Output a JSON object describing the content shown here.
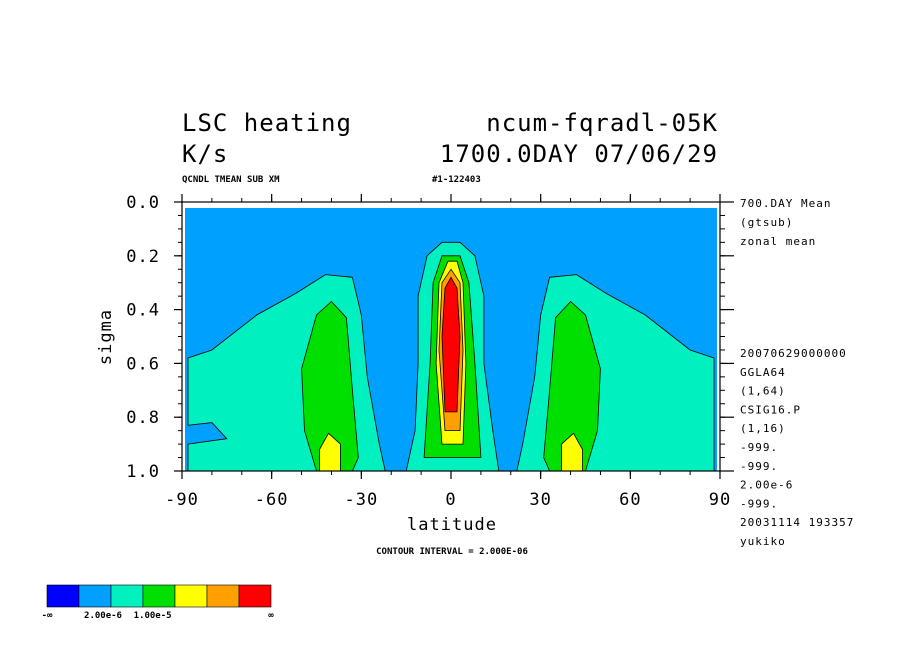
{
  "header": {
    "title_left": "LSC heating",
    "title_right": "ncum-fqradl-05K",
    "units": "K/s",
    "time": "1700.0DAY 07/06/29",
    "sub_left": "QCNDL TMEAN SUB XM",
    "sub_right": "#1-122403"
  },
  "side_info_top": [
    "700.DAY Mean",
    "(gtsub)",
    "zonal mean"
  ],
  "side_info_bottom": [
    "20070629000000",
    "GGLA64",
    "(1,64)",
    "CSIG16.P",
    "(1,16)",
    "-999.",
    "-999.",
    "2.00e-6",
    "-999.",
    "20031114 193357",
    "yukiko"
  ],
  "footer": {
    "contour_interval": "CONTOUR INTERVAL = 2.000E-06"
  },
  "legend": {
    "colors": [
      "#0000ff",
      "#00a0ff",
      "#00f0c0",
      "#00e000",
      "#ffff00",
      "#ffa000",
      "#ff0000"
    ],
    "labels": [
      "-∞",
      "2.00e-6",
      "1.00e-5",
      "∞"
    ]
  },
  "chart_data": {
    "type": "contour",
    "variable": "LSC heating",
    "units": "K/s",
    "xlabel": "latitude",
    "ylabel": "sigma",
    "xlim": [
      -90,
      90
    ],
    "ylim": [
      1.0,
      0.0
    ],
    "x_ticks": [
      "-90",
      "-60",
      "-30",
      "0",
      "30",
      "60",
      "90"
    ],
    "y_ticks": [
      "0.0",
      "0.2",
      "0.4",
      "0.6",
      "0.8",
      "1.0"
    ],
    "contour_interval": 2e-06,
    "shading_levels": [
      2e-06,
      1e-05
    ],
    "regions": [
      {
        "level": 1,
        "color": "#00f0c0",
        "outline": [
          [
            -88,
            0.58
          ],
          [
            -80,
            0.55
          ],
          [
            -65,
            0.42
          ],
          [
            -52,
            0.34
          ],
          [
            -42,
            0.27
          ],
          [
            -33,
            0.28
          ],
          [
            -30,
            0.42
          ],
          [
            -28,
            0.65
          ],
          [
            -24,
            0.9
          ],
          [
            -22,
            1.0
          ],
          [
            -88,
            1.0
          ],
          [
            -88,
            0.9
          ],
          [
            -75,
            0.88
          ],
          [
            -80,
            0.82
          ],
          [
            -88,
            0.83
          ]
        ]
      },
      {
        "level": 1,
        "color": "#00f0c0",
        "outline": [
          [
            88,
            0.58
          ],
          [
            80,
            0.55
          ],
          [
            65,
            0.42
          ],
          [
            52,
            0.34
          ],
          [
            42,
            0.27
          ],
          [
            33,
            0.28
          ],
          [
            30,
            0.42
          ],
          [
            28,
            0.65
          ],
          [
            24,
            0.9
          ],
          [
            22,
            1.0
          ],
          [
            88,
            1.0
          ],
          [
            88,
            0.9
          ]
        ]
      },
      {
        "level": 2,
        "color": "#00e000",
        "outline": [
          [
            -50,
            0.62
          ],
          [
            -45,
            0.42
          ],
          [
            -40,
            0.37
          ],
          [
            -35,
            0.43
          ],
          [
            -33,
            0.7
          ],
          [
            -31,
            0.95
          ],
          [
            -33,
            1.0
          ],
          [
            -45,
            1.0
          ],
          [
            -49,
            0.85
          ]
        ]
      },
      {
        "level": 2,
        "color": "#00e000",
        "outline": [
          [
            50,
            0.62
          ],
          [
            45,
            0.42
          ],
          [
            40,
            0.37
          ],
          [
            35,
            0.43
          ],
          [
            33,
            0.7
          ],
          [
            31,
            0.95
          ],
          [
            33,
            1.0
          ],
          [
            45,
            1.0
          ],
          [
            49,
            0.85
          ]
        ]
      },
      {
        "level": 3,
        "color": "#ffff00",
        "outline": [
          [
            -44,
            0.92
          ],
          [
            -41,
            0.86
          ],
          [
            -37,
            0.9
          ],
          [
            -37,
            1.0
          ],
          [
            -44,
            1.0
          ]
        ]
      },
      {
        "level": 3,
        "color": "#ffff00",
        "outline": [
          [
            44,
            0.92
          ],
          [
            41,
            0.86
          ],
          [
            37,
            0.9
          ],
          [
            37,
            1.0
          ],
          [
            44,
            1.0
          ]
        ]
      },
      {
        "level": 1,
        "color": "#00f0c0",
        "outline": [
          [
            -11,
            0.35
          ],
          [
            -8,
            0.2
          ],
          [
            -3,
            0.15
          ],
          [
            3,
            0.15
          ],
          [
            8,
            0.2
          ],
          [
            11,
            0.35
          ],
          [
            11,
            0.6
          ],
          [
            14,
            0.85
          ],
          [
            16,
            1.0
          ],
          [
            -15,
            1.0
          ],
          [
            -12,
            0.85
          ],
          [
            -11,
            0.6
          ]
        ]
      },
      {
        "level": 2,
        "color": "#00e000",
        "outline": [
          [
            -6,
            0.3
          ],
          [
            -3,
            0.2
          ],
          [
            3,
            0.2
          ],
          [
            6,
            0.3
          ],
          [
            8,
            0.6
          ],
          [
            10,
            0.95
          ],
          [
            -9,
            0.95
          ],
          [
            -7,
            0.6
          ]
        ]
      },
      {
        "level": 3,
        "color": "#ffff00",
        "outline": [
          [
            -4,
            0.3
          ],
          [
            -1,
            0.22
          ],
          [
            2,
            0.22
          ],
          [
            4,
            0.3
          ],
          [
            5,
            0.6
          ],
          [
            4,
            0.9
          ],
          [
            -3,
            0.9
          ],
          [
            -5,
            0.6
          ]
        ]
      },
      {
        "level": 4,
        "color": "#ffa000",
        "outline": [
          [
            -3,
            0.3
          ],
          [
            0,
            0.25
          ],
          [
            3,
            0.3
          ],
          [
            4,
            0.55
          ],
          [
            3,
            0.85
          ],
          [
            -2,
            0.85
          ],
          [
            -4,
            0.55
          ]
        ]
      },
      {
        "level": 5,
        "color": "#ff0000",
        "outline": [
          [
            -2,
            0.32
          ],
          [
            0,
            0.28
          ],
          [
            2,
            0.32
          ],
          [
            3,
            0.5
          ],
          [
            2,
            0.78
          ],
          [
            -2,
            0.78
          ],
          [
            -3,
            0.5
          ]
        ]
      }
    ]
  }
}
